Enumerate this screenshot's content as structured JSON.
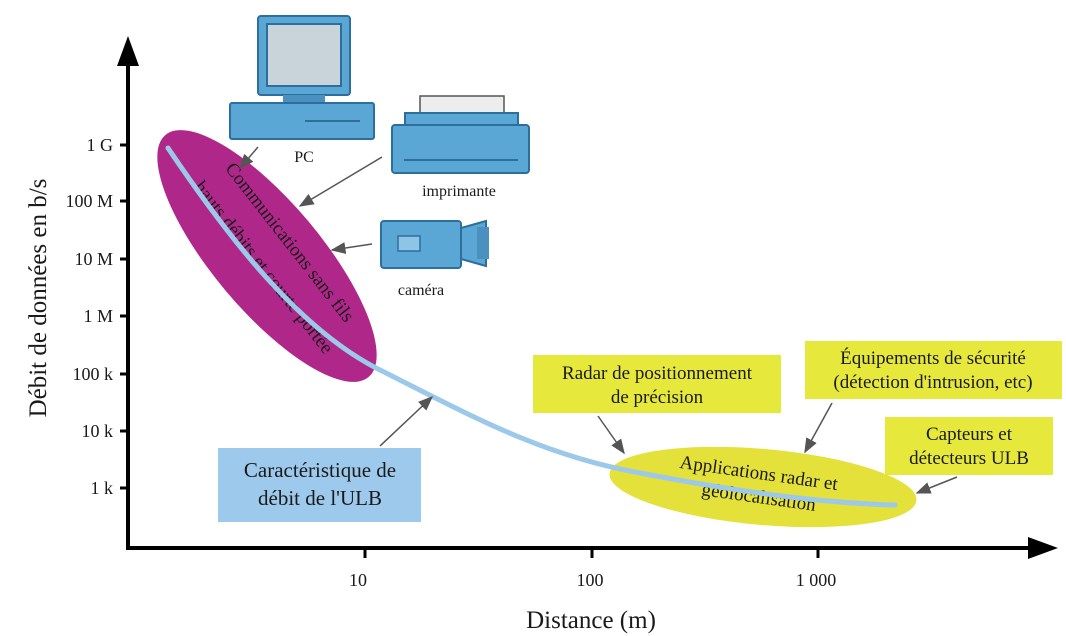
{
  "y_axis_label": "Débit de données en b/s",
  "x_axis_label": "Distance (m)",
  "y_ticks": [
    "1 G",
    "100 M",
    "10 M",
    "1 M",
    "100 k",
    "10 k",
    "1 k"
  ],
  "x_ticks": [
    "10",
    "100",
    "1 000"
  ],
  "devices": {
    "pc": "PC",
    "printer": "imprimante",
    "camera": "caméra"
  },
  "wireless_zone": {
    "line1": "Communications sans fils",
    "line2": "hauts débits et courte portée"
  },
  "radar_zone": {
    "line1": "Applications radar et",
    "line2": "géolocalisation"
  },
  "callouts": {
    "uwb_curve": {
      "line1": "Caractéristique de",
      "line2": "débit de l'ULB"
    },
    "radar_positioning": {
      "line1": "Radar de positionnement",
      "line2": "de précision"
    },
    "security": {
      "line1": "Équipements de sécurité",
      "line2": "(détection d'intrusion, etc)"
    },
    "sensors": {
      "line1": "Capteurs et",
      "line2": "détecteurs ULB"
    }
  },
  "colors": {
    "wireless_zone": "#b0278a",
    "radar_zone": "#e3e13a",
    "curve": "#9cc8ea",
    "label_yellow": "#e6e83c",
    "label_blue": "#9cc9ec",
    "device": "#5aa7d6"
  }
}
